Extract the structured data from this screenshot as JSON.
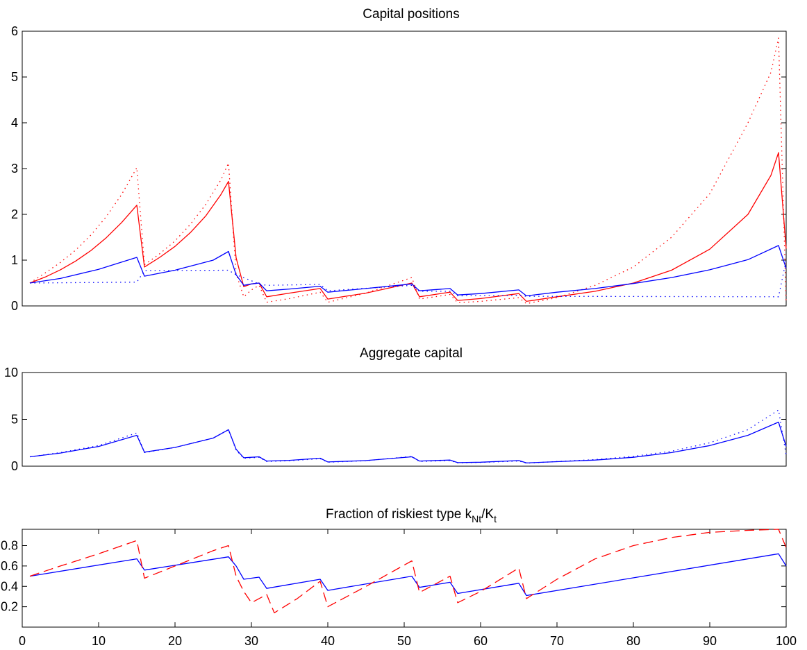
{
  "chart_data": [
    {
      "type": "line",
      "title": "Capital positions",
      "xlim": [
        0,
        100
      ],
      "ylim": [
        0,
        6
      ],
      "yticks": [
        0,
        1,
        2,
        3,
        4,
        5,
        6
      ],
      "xticks": [],
      "grid": false,
      "series": [
        {
          "color": "#ff0000",
          "style": "solid",
          "x": [
            1,
            3,
            5,
            7,
            9,
            11,
            13,
            15,
            16,
            18,
            20,
            22,
            24,
            26,
            27,
            28,
            29,
            30,
            31,
            32,
            35,
            39,
            40,
            45,
            51,
            52,
            56,
            57,
            60,
            65,
            66,
            70,
            75,
            80,
            85,
            90,
            95,
            98,
            99,
            100
          ],
          "y": [
            0.5,
            0.63,
            0.79,
            0.98,
            1.21,
            1.49,
            1.82,
            2.2,
            0.85,
            1.06,
            1.3,
            1.6,
            1.96,
            2.43,
            2.72,
            1.05,
            0.42,
            0.48,
            0.5,
            0.2,
            0.28,
            0.38,
            0.15,
            0.28,
            0.5,
            0.2,
            0.3,
            0.12,
            0.16,
            0.27,
            0.1,
            0.2,
            0.32,
            0.5,
            0.78,
            1.24,
            2.0,
            2.85,
            3.35,
            1.25
          ]
        },
        {
          "color": "#ff0000",
          "style": "dotted",
          "x": [
            1,
            3,
            5,
            7,
            9,
            11,
            13,
            15,
            16,
            18,
            20,
            22,
            24,
            26,
            27,
            28,
            29,
            30,
            31,
            32,
            35,
            39,
            40,
            45,
            51,
            52,
            56,
            57,
            60,
            65,
            66,
            70,
            75,
            80,
            85,
            90,
            95,
            98,
            99,
            100
          ],
          "y": [
            0.5,
            0.72,
            0.95,
            1.22,
            1.55,
            1.95,
            2.43,
            3.02,
            0.9,
            1.14,
            1.42,
            1.78,
            2.21,
            2.75,
            3.12,
            0.7,
            0.2,
            0.35,
            0.45,
            0.08,
            0.16,
            0.3,
            0.08,
            0.28,
            0.62,
            0.15,
            0.25,
            0.07,
            0.1,
            0.18,
            0.05,
            0.18,
            0.45,
            0.85,
            1.5,
            2.45,
            4.0,
            5.1,
            5.85,
            0.05
          ]
        },
        {
          "color": "#0000ff",
          "style": "solid",
          "x": [
            1,
            5,
            10,
            15,
            16,
            20,
            25,
            27,
            28,
            29,
            30,
            31,
            32,
            35,
            39,
            40,
            45,
            51,
            52,
            56,
            57,
            60,
            65,
            66,
            70,
            75,
            80,
            85,
            90,
            95,
            99,
            100
          ],
          "y": [
            0.5,
            0.6,
            0.8,
            1.06,
            0.65,
            0.78,
            1.0,
            1.19,
            0.68,
            0.45,
            0.48,
            0.5,
            0.33,
            0.37,
            0.43,
            0.3,
            0.38,
            0.48,
            0.33,
            0.38,
            0.24,
            0.27,
            0.35,
            0.22,
            0.3,
            0.38,
            0.49,
            0.62,
            0.79,
            1.01,
            1.32,
            0.82
          ]
        },
        {
          "color": "#0000ff",
          "style": "dotted",
          "x": [
            1,
            15,
            16,
            27,
            28,
            30,
            31,
            32,
            39,
            40,
            51,
            52,
            56,
            57,
            65,
            66,
            99,
            100
          ],
          "y": [
            0.5,
            0.52,
            0.77,
            0.78,
            0.68,
            0.55,
            0.48,
            0.45,
            0.47,
            0.33,
            0.45,
            0.32,
            0.32,
            0.22,
            0.23,
            0.21,
            0.2,
            1.0
          ]
        }
      ]
    },
    {
      "type": "line",
      "title": "Aggregate capital",
      "xlim": [
        0,
        100
      ],
      "ylim": [
        0,
        10
      ],
      "yticks": [
        0,
        5,
        10
      ],
      "xticks": [],
      "grid": false,
      "series": [
        {
          "color": "#0000ff",
          "style": "solid",
          "x": [
            1,
            5,
            10,
            15,
            16,
            20,
            25,
            27,
            28,
            29,
            30,
            31,
            32,
            35,
            39,
            40,
            45,
            51,
            52,
            56,
            57,
            60,
            65,
            66,
            70,
            75,
            80,
            85,
            90,
            95,
            99,
            100
          ],
          "y": [
            1.0,
            1.4,
            2.1,
            3.3,
            1.5,
            2.0,
            3.0,
            3.9,
            1.8,
            0.9,
            0.95,
            1.0,
            0.55,
            0.62,
            0.85,
            0.45,
            0.6,
            1.0,
            0.55,
            0.65,
            0.38,
            0.42,
            0.6,
            0.35,
            0.48,
            0.65,
            0.95,
            1.45,
            2.2,
            3.3,
            4.7,
            2.1
          ]
        },
        {
          "color": "#0000ff",
          "style": "dotted",
          "x": [
            1,
            5,
            10,
            15,
            16,
            20,
            25,
            27,
            28,
            29,
            30,
            31,
            32,
            35,
            39,
            40,
            45,
            51,
            52,
            56,
            57,
            60,
            65,
            66,
            70,
            75,
            80,
            85,
            90,
            95,
            99,
            100
          ],
          "y": [
            1.0,
            1.45,
            2.2,
            3.55,
            1.45,
            2.0,
            3.0,
            3.9,
            1.7,
            0.85,
            0.9,
            0.95,
            0.5,
            0.58,
            0.8,
            0.42,
            0.58,
            1.05,
            0.5,
            0.6,
            0.35,
            0.4,
            0.55,
            0.32,
            0.5,
            0.7,
            1.05,
            1.6,
            2.5,
            3.9,
            6.0,
            1.2
          ]
        }
      ]
    },
    {
      "type": "line",
      "title": "Fraction of riskiest type k",
      "title_sub1": "Nt",
      "title_mid": "/K",
      "title_sub2": "t",
      "xlim": [
        0,
        100
      ],
      "ylim": [
        0,
        0.96
      ],
      "yticks": [
        0.2,
        0.4,
        0.6,
        0.8
      ],
      "ytick_labels": [
        "0.2",
        "0.4",
        "0.6",
        "0.8"
      ],
      "xticks": [
        0,
        10,
        20,
        30,
        40,
        50,
        60,
        70,
        80,
        90,
        100
      ],
      "grid": false,
      "series": [
        {
          "color": "#0000ff",
          "style": "solid",
          "x": [
            1,
            15,
            16,
            27,
            28,
            29,
            30,
            31,
            32,
            39,
            40,
            51,
            52,
            56,
            57,
            65,
            66,
            99,
            100
          ],
          "y": [
            0.5,
            0.67,
            0.56,
            0.69,
            0.6,
            0.47,
            0.48,
            0.49,
            0.38,
            0.47,
            0.36,
            0.5,
            0.39,
            0.44,
            0.33,
            0.43,
            0.31,
            0.72,
            0.6
          ]
        },
        {
          "color": "#ff0000",
          "style": "dashed",
          "x": [
            1,
            5,
            10,
            15,
            16,
            20,
            25,
            27,
            28,
            29,
            30,
            31,
            32,
            33,
            36,
            39,
            40,
            45,
            51,
            52,
            56,
            57,
            60,
            65,
            66,
            70,
            75,
            80,
            85,
            90,
            95,
            99,
            100
          ],
          "y": [
            0.5,
            0.6,
            0.72,
            0.85,
            0.48,
            0.6,
            0.75,
            0.8,
            0.5,
            0.35,
            0.24,
            0.28,
            0.32,
            0.14,
            0.28,
            0.45,
            0.2,
            0.4,
            0.65,
            0.34,
            0.5,
            0.24,
            0.35,
            0.58,
            0.28,
            0.47,
            0.67,
            0.8,
            0.88,
            0.93,
            0.95,
            0.96,
            0.78
          ]
        }
      ]
    }
  ]
}
